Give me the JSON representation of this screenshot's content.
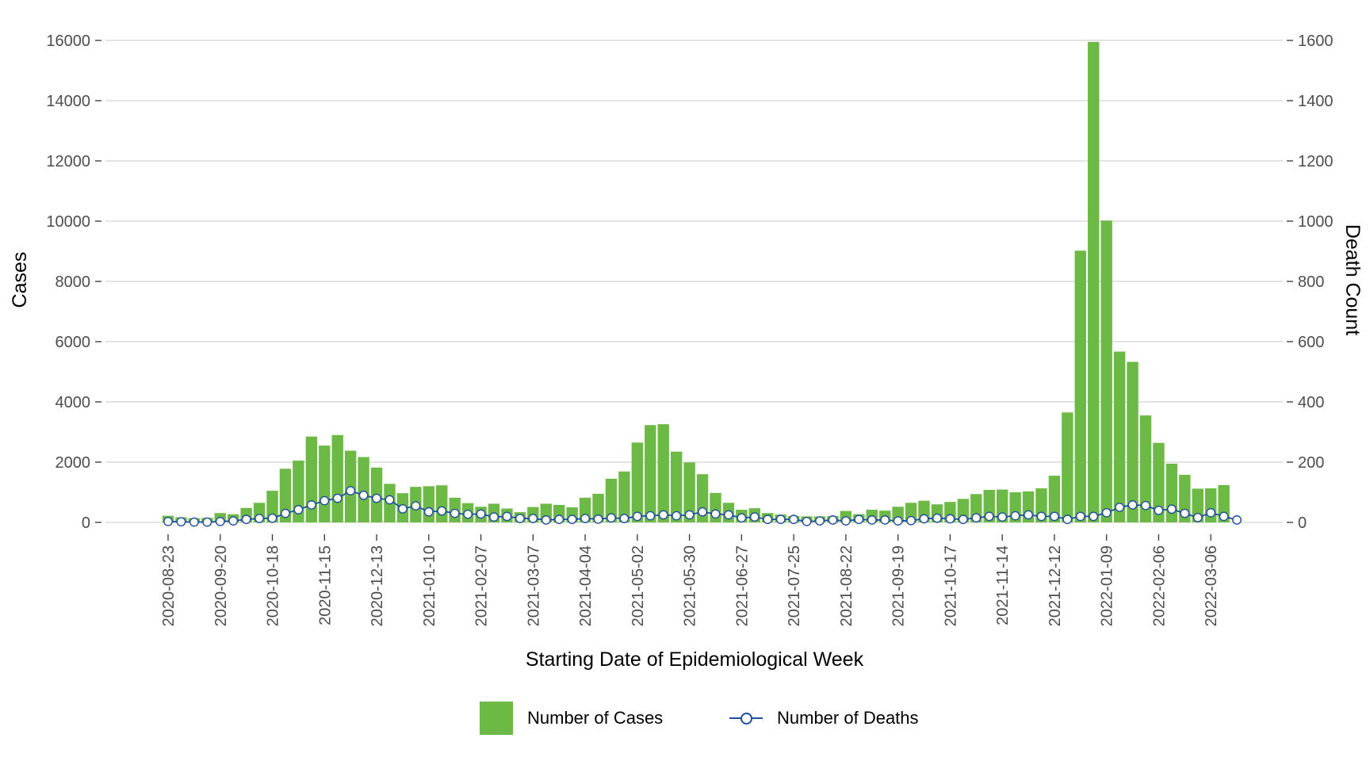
{
  "chart_data": {
    "type": "bar",
    "title": "",
    "xlabel": "Starting Date of Epidemiological Week",
    "ylabel": "Cases",
    "y2label": "Death Count",
    "ylim": [
      0,
      16000
    ],
    "y2lim": [
      0,
      1600
    ],
    "yticks": [
      "0",
      "2000",
      "4000",
      "6000",
      "8000",
      "10000",
      "12000",
      "14000",
      "16000"
    ],
    "y2ticks": [
      "0",
      "200",
      "400",
      "600",
      "800",
      "1000",
      "1200",
      "1400",
      "1600"
    ],
    "xticks": [
      "2020-08-23",
      "2020-09-20",
      "2020-10-18",
      "2020-11-15",
      "2020-12-13",
      "2021-01-10",
      "2021-02-07",
      "2021-03-07",
      "2021-04-04",
      "2021-05-02",
      "2021-05-30",
      "2021-06-27",
      "2021-07-25",
      "2021-08-22",
      "2021-09-19",
      "2021-10-17",
      "2021-11-14",
      "2021-12-12",
      "2022-01-09",
      "2022-02-06",
      "2022-03-06"
    ],
    "x_start": "2020-08-23",
    "x_step_days": 7,
    "grid": true,
    "legend_position": "bottom",
    "colors": {
      "cases": "#6cba45",
      "deaths": "#1f4e9c",
      "grid": "#d3d3d3",
      "marker_fill": "#ffffff"
    },
    "series": [
      {
        "name": "Number of Cases",
        "type": "bar",
        "axis": "left",
        "values": [
          220,
          170,
          140,
          150,
          310,
          270,
          480,
          650,
          1050,
          1780,
          2050,
          2850,
          2550,
          2900,
          2380,
          2170,
          1820,
          1280,
          970,
          1180,
          1200,
          1230,
          820,
          640,
          520,
          620,
          460,
          340,
          510,
          620,
          580,
          500,
          820,
          950,
          1450,
          1690,
          2650,
          3230,
          3260,
          2350,
          1990,
          1600,
          980,
          650,
          420,
          470,
          310,
          260,
          210,
          200,
          200,
          210,
          380,
          270,
          420,
          390,
          520,
          650,
          720,
          600,
          680,
          780,
          940,
          1080,
          1090,
          1000,
          1030,
          1130,
          1550,
          3650,
          9020,
          15950,
          10020,
          5670,
          5330,
          3550,
          2640,
          1950,
          1580,
          1120,
          1130,
          1240
        ]
      },
      {
        "name": "Number of Deaths",
        "type": "line",
        "axis": "right",
        "values": [
          3,
          2,
          1,
          1,
          3,
          5,
          10,
          13,
          14,
          30,
          42,
          58,
          72,
          80,
          105,
          90,
          80,
          75,
          45,
          55,
          35,
          38,
          30,
          27,
          28,
          18,
          20,
          13,
          13,
          8,
          10,
          10,
          13,
          11,
          15,
          13,
          20,
          22,
          25,
          22,
          25,
          35,
          28,
          25,
          15,
          18,
          10,
          10,
          10,
          3,
          5,
          8,
          5,
          10,
          8,
          8,
          5,
          6,
          12,
          14,
          12,
          10,
          15,
          20,
          18,
          22,
          25,
          20,
          20,
          10,
          20,
          20,
          32,
          50,
          58,
          56,
          40,
          44,
          30,
          16,
          32,
          20,
          8
        ]
      }
    ]
  }
}
